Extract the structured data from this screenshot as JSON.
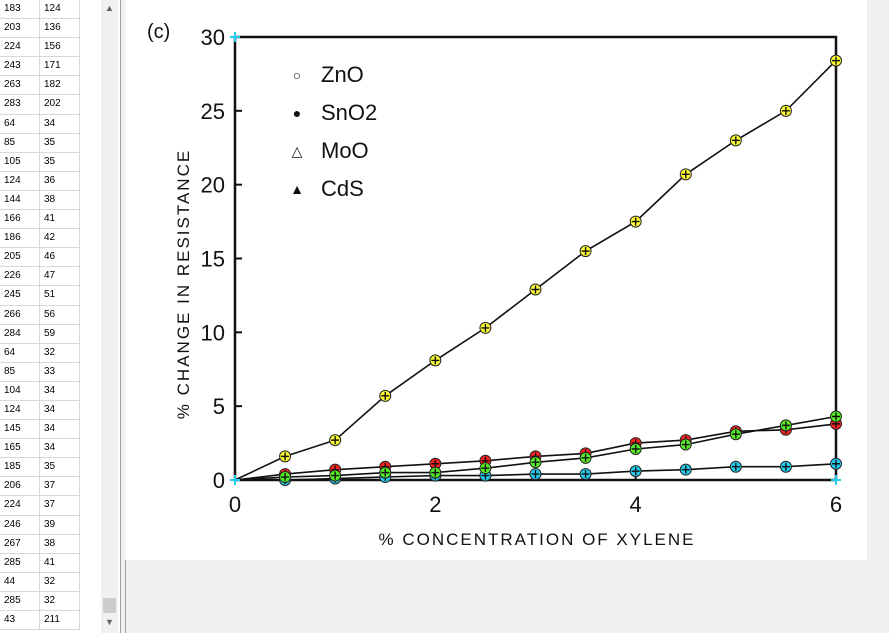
{
  "table": {
    "rows": [
      [
        "183",
        "124"
      ],
      [
        "203",
        "136"
      ],
      [
        "224",
        "156"
      ],
      [
        "243",
        "171"
      ],
      [
        "263",
        "182"
      ],
      [
        "283",
        "202"
      ],
      [
        "64",
        "34"
      ],
      [
        "85",
        "35"
      ],
      [
        "105",
        "35"
      ],
      [
        "124",
        "36"
      ],
      [
        "144",
        "38"
      ],
      [
        "166",
        "41"
      ],
      [
        "186",
        "42"
      ],
      [
        "205",
        "46"
      ],
      [
        "226",
        "47"
      ],
      [
        "245",
        "51"
      ],
      [
        "266",
        "56"
      ],
      [
        "284",
        "59"
      ],
      [
        "64",
        "32"
      ],
      [
        "85",
        "33"
      ],
      [
        "104",
        "34"
      ],
      [
        "124",
        "34"
      ],
      [
        "145",
        "34"
      ],
      [
        "165",
        "34"
      ],
      [
        "185",
        "35"
      ],
      [
        "206",
        "37"
      ],
      [
        "224",
        "37"
      ],
      [
        "246",
        "39"
      ],
      [
        "267",
        "38"
      ],
      [
        "285",
        "41"
      ],
      [
        "44",
        "32"
      ],
      [
        "285",
        "32"
      ],
      [
        "43",
        "211"
      ]
    ]
  },
  "scrollbar": {
    "up_icon": "chevron-up-icon",
    "down_icon": "chevron-down-icon"
  },
  "chart_data": {
    "type": "line",
    "panel_label": "(c)",
    "xlabel": "% CONCENTRATION OF XYLENE",
    "ylabel": "% CHANGE IN RESISTANCE",
    "xlim": [
      0,
      6
    ],
    "ylim": [
      0,
      30
    ],
    "xticks": [
      0,
      2,
      4,
      6
    ],
    "yticks": [
      0,
      5,
      10,
      15,
      20,
      25,
      30
    ],
    "grid": false,
    "legend_position": "top-left",
    "legend": [
      {
        "symbol": "○",
        "label": "ZnO"
      },
      {
        "symbol": "●",
        "label": "SnO2"
      },
      {
        "symbol": "△",
        "label": "MoO"
      },
      {
        "symbol": "▲",
        "label": "CdS"
      }
    ],
    "series": [
      {
        "name": "ZnO",
        "x": [
          0.5,
          1,
          1.5,
          2,
          2.5,
          3,
          3.5,
          4,
          4.5,
          5,
          5.5,
          6
        ],
        "y": [
          1.6,
          2.7,
          5.7,
          8.1,
          10.3,
          12.9,
          15.5,
          17.5,
          20.7,
          23,
          25,
          28.4
        ]
      },
      {
        "name": "SnO2",
        "x": [
          0.5,
          1,
          1.5,
          2,
          2.5,
          3,
          3.5,
          4,
          4.5,
          5,
          5.5,
          6
        ],
        "y": [
          0.4,
          0.7,
          0.9,
          1.1,
          1.3,
          1.6,
          1.8,
          2.5,
          2.7,
          3.3,
          3.4,
          3.8
        ]
      },
      {
        "name": "MoO",
        "x": [
          0.5,
          1,
          1.5,
          2,
          2.5,
          3,
          3.5,
          4,
          4.5,
          5,
          5.5,
          6
        ],
        "y": [
          0.0,
          0.1,
          0.2,
          0.3,
          0.3,
          0.4,
          0.4,
          0.6,
          0.7,
          0.9,
          0.9,
          1.1
        ]
      },
      {
        "name": "CdS",
        "x": [
          0.5,
          1,
          1.5,
          2,
          2.5,
          3,
          3.5,
          4,
          4.5,
          5,
          5.5,
          6
        ],
        "y": [
          0.2,
          0.3,
          0.5,
          0.5,
          0.8,
          1.2,
          1.5,
          2.1,
          2.4,
          3.1,
          3.7,
          4.3
        ]
      }
    ],
    "overlay_markers": {
      "yellow": "ZnO",
      "red": "SnO2",
      "cyan": "MoO",
      "green": "CdS"
    },
    "colors": {
      "yellow": "#ffff33",
      "red": "#ff2020",
      "cyan": "#22ccee",
      "green": "#55ee22",
      "line": "#111111"
    }
  }
}
